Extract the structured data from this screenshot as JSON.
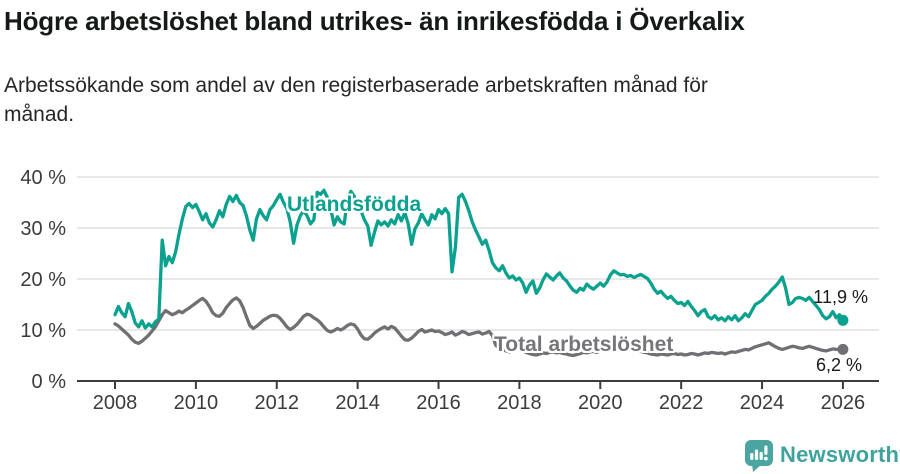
{
  "header": {
    "title": "Högre arbetslöshet bland utrikes- än inrikesfödda i Överkalix",
    "subtitle": "Arbetssökande som andel av den registerbaserade arbetskraften månad för månad."
  },
  "footer": {
    "brand": "Newsworthy"
  },
  "colors": {
    "utlandsfodda": "#0aa18f",
    "total": "#707074",
    "grid": "#d9d9d9",
    "axis": "#3c3c3c",
    "brand_teal": "#4aa5a0",
    "end_label_text": "#1a1a1a"
  },
  "chart_data": {
    "type": "line",
    "title": "Högre arbetslöshet bland utrikes- än inrikesfödda i Överkalix",
    "subtitle": "Arbetssökande som andel av den registerbaserade arbetskraften månad för månad.",
    "x_start": "2008-01",
    "x_end": "2026-01",
    "x_freq": "monthly",
    "grid": "horizontal",
    "legend": "inline-labels",
    "axes": {
      "ylim": [
        0,
        40
      ],
      "yticks": [
        {
          "value": 0,
          "label": "0 %"
        },
        {
          "value": 10,
          "label": "10 %"
        },
        {
          "value": 20,
          "label": "20 %"
        },
        {
          "value": 30,
          "label": "30 %"
        },
        {
          "value": 40,
          "label": "40 %"
        }
      ],
      "xticks": [
        {
          "year": 2008,
          "label": "2008"
        },
        {
          "year": 2010,
          "label": "2010"
        },
        {
          "year": 2012,
          "label": "2012"
        },
        {
          "year": 2014,
          "label": "2014"
        },
        {
          "year": 2016,
          "label": "2016"
        },
        {
          "year": 2018,
          "label": "2018"
        },
        {
          "year": 2020,
          "label": "2020"
        },
        {
          "year": 2022,
          "label": "2022"
        },
        {
          "year": 2024,
          "label": "2024"
        },
        {
          "year": 2026,
          "label": "2026"
        }
      ]
    },
    "series": [
      {
        "name": "Utlandsfödda",
        "label": "Utlandsfödda",
        "dom_name": "utlandsfodda-line",
        "color": "#0aa18f",
        "end_label": "11,9 %",
        "end_value": 11.9,
        "values": [
          13.0,
          14.6,
          13.4,
          12.6,
          15.2,
          13.6,
          11.4,
          10.6,
          11.8,
          10.4,
          11.2,
          10.6,
          11.6,
          12.2,
          27.6,
          22.6,
          24.4,
          23.2,
          25.4,
          28.8,
          31.8,
          34.2,
          34.8,
          34.0,
          34.6,
          33.2,
          31.6,
          32.8,
          31.0,
          30.2,
          31.6,
          33.4,
          32.2,
          34.6,
          36.2,
          35.2,
          36.4,
          35.0,
          34.4,
          32.4,
          29.6,
          27.6,
          31.8,
          33.6,
          32.4,
          31.6,
          33.6,
          34.4,
          35.6,
          36.6,
          35.0,
          33.8,
          31.2,
          27.0,
          30.6,
          32.4,
          33.4,
          32.4,
          30.8,
          31.6,
          37.0,
          36.6,
          37.4,
          36.0,
          33.8,
          30.6,
          32.2,
          31.2,
          30.8,
          35.8,
          37.2,
          36.2,
          34.2,
          33.4,
          31.6,
          30.4,
          26.6,
          29.2,
          31.4,
          30.6,
          31.2,
          30.4,
          31.6,
          30.8,
          32.6,
          31.4,
          33.0,
          30.8,
          26.8,
          29.8,
          31.0,
          32.8,
          31.6,
          30.6,
          32.6,
          31.8,
          33.6,
          32.8,
          33.8,
          32.8,
          21.4,
          26.2,
          36.0,
          36.6,
          35.2,
          33.4,
          31.2,
          29.6,
          28.2,
          26.8,
          27.6,
          25.6,
          23.2,
          22.2,
          21.6,
          22.6,
          21.2,
          20.2,
          20.6,
          19.8,
          20.2,
          19.2,
          17.4,
          18.8,
          19.6,
          17.2,
          18.2,
          19.8,
          21.0,
          20.4,
          19.8,
          20.6,
          21.2,
          20.2,
          19.6,
          18.6,
          17.8,
          17.4,
          18.2,
          17.8,
          19.0,
          18.4,
          18.0,
          18.6,
          19.2,
          18.6,
          19.4,
          20.8,
          21.6,
          21.2,
          20.8,
          20.9,
          20.5,
          20.7,
          20.3,
          20.6,
          20.9,
          20.5,
          20.1,
          19.2,
          18.0,
          17.2,
          17.6,
          16.8,
          16.2,
          16.6,
          15.8,
          15.2,
          15.4,
          14.8,
          15.6,
          14.6,
          13.8,
          12.8,
          13.6,
          14.0,
          12.6,
          12.2,
          12.8,
          12.0,
          12.4,
          11.8,
          12.6,
          12.0,
          12.8,
          11.8,
          12.4,
          13.2,
          12.6,
          13.8,
          15.0,
          15.4,
          15.8,
          16.6,
          17.2,
          18.0,
          18.6,
          19.4,
          20.4,
          18.2,
          15.0,
          15.4,
          16.2,
          16.4,
          16.2,
          15.8,
          16.4,
          15.6,
          14.8,
          14.0,
          12.8,
          12.2,
          12.6,
          13.6,
          12.4,
          13.0,
          11.9
        ]
      },
      {
        "name": "Total arbetslöshet",
        "label": "Total arbetslöshet",
        "dom_name": "total-line",
        "color": "#707074",
        "end_label": "6,2 %",
        "end_value": 6.2,
        "values": [
          11.2,
          10.8,
          10.2,
          9.6,
          9.0,
          8.2,
          7.6,
          7.4,
          7.8,
          8.4,
          9.0,
          9.8,
          10.6,
          11.8,
          13.0,
          13.8,
          13.4,
          13.0,
          13.3,
          13.7,
          13.4,
          13.9,
          14.3,
          14.8,
          15.3,
          15.8,
          16.2,
          15.6,
          14.6,
          13.4,
          12.8,
          12.7,
          13.3,
          14.4,
          15.2,
          15.9,
          16.3,
          15.7,
          14.4,
          12.6,
          10.9,
          10.3,
          10.7,
          11.3,
          11.9,
          12.3,
          12.7,
          12.9,
          12.8,
          12.3,
          11.5,
          10.6,
          10.1,
          10.5,
          11.1,
          11.9,
          12.7,
          13.1,
          12.9,
          12.4,
          12.0,
          11.4,
          10.6,
          9.9,
          9.6,
          9.9,
          10.3,
          10.0,
          10.4,
          10.9,
          11.2,
          11.0,
          10.2,
          9.0,
          8.3,
          8.2,
          8.7,
          9.4,
          9.9,
          10.3,
          10.6,
          10.2,
          10.7,
          10.4,
          9.6,
          8.8,
          8.1,
          8.0,
          8.4,
          9.0,
          9.7,
          10.1,
          9.6,
          9.8,
          10.0,
          9.7,
          9.8,
          9.5,
          9.1,
          9.3,
          9.6,
          9.0,
          9.3,
          9.7,
          9.5,
          9.1,
          9.3,
          9.5,
          9.6,
          9.2,
          9.4,
          9.7,
          8.9,
          7.0,
          6.5,
          6.2,
          5.9,
          5.7,
          6.0,
          6.2,
          6.1,
          5.9,
          5.6,
          5.4,
          5.2,
          5.1,
          5.3,
          5.5,
          5.4,
          5.6,
          5.7,
          5.5,
          5.6,
          5.4,
          5.3,
          5.1,
          5.0,
          5.2,
          5.4,
          5.6,
          5.5,
          5.7,
          5.8,
          5.6,
          5.9,
          6.1,
          6.5,
          6.9,
          7.1,
          6.9,
          6.7,
          6.5,
          6.3,
          6.1,
          6.0,
          5.9,
          5.8,
          5.6,
          5.5,
          5.3,
          5.2,
          5.1,
          5.3,
          5.2,
          5.1,
          5.3,
          5.4,
          5.2,
          5.3,
          5.1,
          5.2,
          5.4,
          5.3,
          5.1,
          5.3,
          5.5,
          5.4,
          5.6,
          5.5,
          5.4,
          5.5,
          5.3,
          5.5,
          5.7,
          5.6,
          5.8,
          6.0,
          6.2,
          6.1,
          6.4,
          6.7,
          6.9,
          7.1,
          7.3,
          7.5,
          7.1,
          6.7,
          6.4,
          6.2,
          6.4,
          6.6,
          6.8,
          6.7,
          6.5,
          6.4,
          6.6,
          6.8,
          6.6,
          6.4,
          6.2,
          6.0,
          5.9,
          6.1,
          6.3,
          6.2,
          6.2,
          6.2
        ]
      }
    ]
  }
}
